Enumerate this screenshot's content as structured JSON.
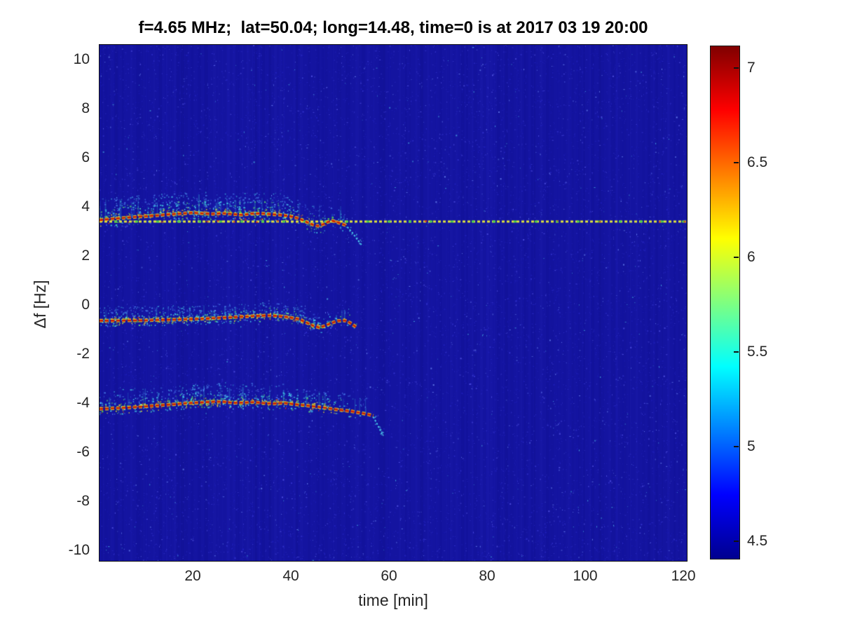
{
  "chart_data": {
    "type": "heatmap",
    "title": "f=4.65 MHz;  lat=50.04; long=14.48, time=0 is at 2017 03 19 20:00",
    "xlabel": "time [min]",
    "ylabel": "Δf [Hz]",
    "xlim": [
      1,
      120.7
    ],
    "ylim": [
      -10.43,
      10.6
    ],
    "xticks": [
      20,
      40,
      60,
      80,
      100,
      120
    ],
    "yticks": [
      10,
      8,
      6,
      4,
      2,
      0,
      -2,
      -4,
      -6,
      -8,
      -10
    ],
    "grid": false,
    "legend": "none",
    "background_value_color": "#1414a0",
    "noise_seed": 20170319,
    "colorbar": {
      "position": "right",
      "range": [
        4.41,
        7.12
      ],
      "ticks": [
        4.5,
        5,
        5.5,
        6,
        6.5,
        7
      ],
      "colormap": "jet",
      "stops": [
        [
          "#00008f",
          0
        ],
        [
          "#0000ff",
          0.125
        ],
        [
          "#00ffff",
          0.375
        ],
        [
          "#ffff00",
          0.625
        ],
        [
          "#ff0000",
          0.875
        ],
        [
          "#800000",
          1
        ]
      ]
    },
    "horizontal_line": {
      "y": 3.4,
      "x_start": 1,
      "x_end": 120.7,
      "style": "dashed",
      "dash_color": "#dde23c",
      "accent_color": "#50d246",
      "fleck_color": "#d73210"
    },
    "traces": [
      {
        "name": "upper-doppler-echo",
        "core_color": "#d01e00",
        "edge_color": "#ebd71e",
        "tail_color": "#46c8eb",
        "points": [
          [
            1,
            3.46
          ],
          [
            3,
            3.5
          ],
          [
            6,
            3.55
          ],
          [
            9,
            3.6
          ],
          [
            12,
            3.64
          ],
          [
            15,
            3.69
          ],
          [
            18,
            3.73
          ],
          [
            20,
            3.76
          ],
          [
            22,
            3.73
          ],
          [
            24,
            3.71
          ],
          [
            26,
            3.74
          ],
          [
            28,
            3.71
          ],
          [
            30,
            3.67
          ],
          [
            32,
            3.72
          ],
          [
            34,
            3.73
          ],
          [
            36,
            3.7
          ],
          [
            38,
            3.67
          ],
          [
            40,
            3.61
          ],
          [
            41.5,
            3.53
          ],
          [
            43,
            3.4
          ],
          [
            44.5,
            3.27
          ],
          [
            45.5,
            3.22
          ],
          [
            46.5,
            3.28
          ],
          [
            47.5,
            3.38
          ],
          [
            48.5,
            3.43
          ],
          [
            49.5,
            3.37
          ],
          [
            50.5,
            3.3
          ],
          [
            51.5,
            3.23
          ]
        ],
        "tail": [
          [
            51.5,
            3.18
          ],
          [
            52.5,
            2.95
          ],
          [
            53.5,
            2.68
          ],
          [
            54.5,
            2.42
          ]
        ],
        "halo": {
          "up_hz": 0.85,
          "down_hz": 0.3,
          "t_end": 51,
          "density": 1.25
        }
      },
      {
        "name": "middle-doppler-echo",
        "core_color": "#d01e00",
        "edge_color": "#ebd71e",
        "tail_color": "#46c8eb",
        "points": [
          [
            1,
            -0.64
          ],
          [
            4,
            -0.64
          ],
          [
            7,
            -0.63
          ],
          [
            10,
            -0.63
          ],
          [
            13,
            -0.61
          ],
          [
            16,
            -0.6
          ],
          [
            19,
            -0.58
          ],
          [
            22,
            -0.56
          ],
          [
            25,
            -0.53
          ],
          [
            28,
            -0.5
          ],
          [
            31,
            -0.47
          ],
          [
            33.5,
            -0.44
          ],
          [
            35.5,
            -0.43
          ],
          [
            37.5,
            -0.45
          ],
          [
            39.5,
            -0.5
          ],
          [
            41.5,
            -0.57
          ],
          [
            43,
            -0.7
          ],
          [
            44.5,
            -0.84
          ],
          [
            45.8,
            -0.92
          ],
          [
            47,
            -0.85
          ],
          [
            48.2,
            -0.74
          ],
          [
            49.5,
            -0.65
          ],
          [
            51,
            -0.63
          ],
          [
            52,
            -0.72
          ],
          [
            53.3,
            -0.9
          ]
        ],
        "tail": [],
        "halo": {
          "up_hz": 0.55,
          "down_hz": 0.2,
          "t_end": 53,
          "density": 1.0
        }
      },
      {
        "name": "lower-doppler-echo",
        "core_color": "#d01e00",
        "edge_color": "#ebd71e",
        "tail_color": "#46c8eb",
        "points": [
          [
            1,
            -4.24
          ],
          [
            4,
            -4.21
          ],
          [
            7,
            -4.18
          ],
          [
            10,
            -4.14
          ],
          [
            13,
            -4.09
          ],
          [
            16,
            -4.05
          ],
          [
            19,
            -4.0
          ],
          [
            22,
            -3.97
          ],
          [
            24.5,
            -3.94
          ],
          [
            26.5,
            -3.95
          ],
          [
            28.5,
            -3.99
          ],
          [
            30.5,
            -3.98
          ],
          [
            32.5,
            -3.96
          ],
          [
            34.5,
            -4.0
          ],
          [
            36.5,
            -4.02
          ],
          [
            38.5,
            -3.99
          ],
          [
            40.5,
            -4.04
          ],
          [
            42.5,
            -4.08
          ],
          [
            44.5,
            -4.13
          ],
          [
            46.5,
            -4.18
          ],
          [
            48.5,
            -4.24
          ],
          [
            50.5,
            -4.29
          ],
          [
            52.5,
            -4.34
          ],
          [
            54.5,
            -4.41
          ],
          [
            56,
            -4.47
          ],
          [
            56.8,
            -4.52
          ]
        ],
        "tail": [
          [
            56.8,
            -4.56
          ],
          [
            57.5,
            -4.82
          ],
          [
            58.2,
            -5.1
          ],
          [
            58.6,
            -5.25
          ]
        ],
        "halo": {
          "up_hz": 0.75,
          "down_hz": 0.22,
          "t_end": 56,
          "density": 1.1
        }
      }
    ]
  }
}
